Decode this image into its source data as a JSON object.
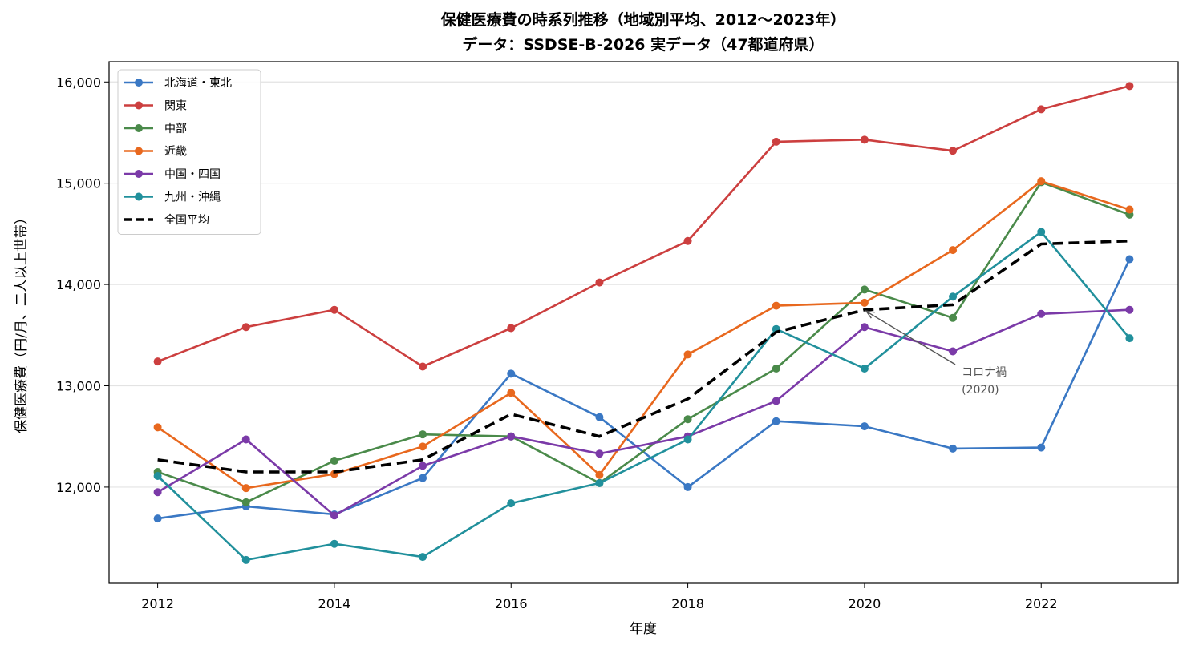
{
  "chart_data": {
    "type": "line",
    "title": "保健医療費の時系列推移（地域別平均、2012〜2023年）",
    "subtitle": "データ：SSDSE-B-2026 実データ（47都道府県）",
    "xlabel": "年度",
    "ylabel": "保健医療費（円/月、二人以上世帯）",
    "x": [
      2012,
      2013,
      2014,
      2015,
      2016,
      2017,
      2018,
      2019,
      2020,
      2021,
      2022,
      2023
    ],
    "xlim": [
      2011.45,
      2023.55
    ],
    "ylim": [
      11050,
      16200
    ],
    "x_ticks": [
      2012,
      2014,
      2016,
      2018,
      2020,
      2022
    ],
    "x_tick_labels": [
      "2012",
      "2014",
      "2016",
      "2018",
      "2020",
      "2022"
    ],
    "y_ticks": [
      12000,
      13000,
      14000,
      15000,
      16000
    ],
    "y_tick_labels": [
      "12,000",
      "13,000",
      "14,000",
      "15,000",
      "16,000"
    ],
    "grid": "horizontal",
    "legend_position": "top-left",
    "series": [
      {
        "name": "北海道・東北",
        "color": "#3a78c4",
        "dashed": false,
        "markers": true,
        "values": [
          11690,
          11810,
          11730,
          12090,
          13120,
          12690,
          12000,
          12650,
          12600,
          12380,
          12390,
          14250
        ]
      },
      {
        "name": "関東",
        "color": "#cc3f3f",
        "dashed": false,
        "markers": true,
        "values": [
          13240,
          13580,
          13750,
          13190,
          13570,
          14020,
          14430,
          15410,
          15430,
          15320,
          15730,
          15960
        ]
      },
      {
        "name": "中部",
        "color": "#4a8a4a",
        "dashed": false,
        "markers": true,
        "values": [
          12150,
          11850,
          12260,
          12520,
          12500,
          12040,
          12670,
          13170,
          13950,
          13670,
          15010,
          14690
        ]
      },
      {
        "name": "近畿",
        "color": "#e8681e",
        "dashed": false,
        "markers": true,
        "values": [
          12590,
          11990,
          12130,
          12400,
          12930,
          12120,
          13310,
          13790,
          13820,
          14340,
          15020,
          14740
        ]
      },
      {
        "name": "中国・四国",
        "color": "#7b3aa8",
        "dashed": false,
        "markers": true,
        "values": [
          11950,
          12470,
          11720,
          12210,
          12500,
          12330,
          12500,
          12850,
          13580,
          13340,
          13710,
          13750
        ]
      },
      {
        "name": "九州・沖縄",
        "color": "#21909c",
        "dashed": false,
        "markers": true,
        "values": [
          12110,
          11280,
          11440,
          11310,
          11840,
          12040,
          12470,
          13560,
          13170,
          13880,
          14520,
          13470
        ]
      },
      {
        "name": "全国平均",
        "color": "#000000",
        "dashed": true,
        "markers": false,
        "values": [
          12270,
          12150,
          12150,
          12270,
          12720,
          12500,
          12870,
          13530,
          13750,
          13800,
          14400,
          14430
        ]
      }
    ],
    "annotations": [
      {
        "text": "コロナ禍",
        "text2": "(2020)",
        "x": 2020,
        "y": 13750,
        "text_x": 2021.1,
        "text_y": 13100
      }
    ]
  }
}
